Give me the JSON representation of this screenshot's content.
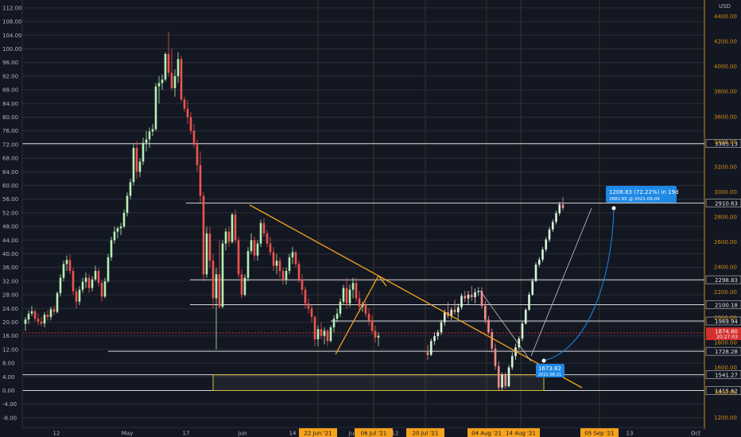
{
  "chart_data": {
    "type": "candlestick",
    "currency": "USD",
    "grid": true,
    "colors": {
      "background": "#131722",
      "up": "#26a69a",
      "up_light": "#b6f0b3",
      "down": "#ef5350",
      "grid": "#2a2e39",
      "level": "#d9d9d9",
      "accent": "#f7a21b",
      "price_badge": "#d32f2f",
      "projection": "#1e88e5"
    },
    "left_axis": {
      "ticks": [
        "112.00",
        "108.00",
        "104.00",
        "100.00",
        "96.00",
        "92.00",
        "88.00",
        "84.00",
        "80.00",
        "76.00",
        "72.00",
        "68.00",
        "64.00",
        "60.00",
        "56.00",
        "52.00",
        "48.00",
        "44.00",
        "40.00",
        "36.00",
        "32.00",
        "28.00",
        "24.00",
        "20.00",
        "16.00",
        "12.00",
        "8.00",
        "4.00",
        "0.00",
        "-4.00",
        "-8.00"
      ]
    },
    "right_axis": {
      "ticks": [
        "4400.00",
        "4200.00",
        "4000.00",
        "3800.00",
        "3600.00",
        "3400.00",
        "3200.00",
        "3000.00",
        "2800.00",
        "2600.00",
        "2400.00",
        "2200.00",
        "2000.00",
        "1800.00",
        "1600.00",
        "1400.00",
        "1200.00"
      ]
    },
    "x_axis": {
      "labels": [
        "12",
        "May",
        "17",
        "Jun",
        "14",
        "22 Jun '21",
        "Jul",
        "06 Jul '21",
        "12",
        "20 Jul '21",
        "04 Aug '21",
        "14 Aug '21",
        "S",
        "05 Sep '21",
        "13",
        "Oct"
      ],
      "highlighted": [
        "22 Jun '21",
        "06 Jul '21",
        "20 Jul '21",
        "04 Aug '21",
        "14 Aug '21",
        "05 Sep '21"
      ]
    },
    "levels": [
      {
        "label": "3385.13",
        "value": 3385.13
      },
      {
        "label": "2910.63",
        "value": 2910.63
      },
      {
        "label": "2298.83",
        "value": 2298.83
      },
      {
        "label": "2100.18",
        "value": 2100.18
      },
      {
        "label": "1969.94",
        "value": 1969.94
      },
      {
        "label": "1728.28",
        "value": 1728.28
      },
      {
        "label": "1541.27",
        "value": 1541.27
      },
      {
        "label": "1415.62",
        "value": 1415.62
      }
    ],
    "current_price": {
      "label": "1874.80",
      "sub": "20:27:03",
      "value": 1874.8
    },
    "projection": {
      "start_label": "1673.82",
      "start_date": "2021-08-21",
      "end_line1": "1208.83 (72.22%) in 19d",
      "end_line2": "2882.65 @ 2021-09-09"
    },
    "candles": [
      {
        "o": 19.5,
        "h": 21.5,
        "l": 17.5,
        "c": 20.8
      },
      {
        "o": 20.8,
        "h": 23.5,
        "l": 19.5,
        "c": 22.5
      },
      {
        "o": 22.5,
        "h": 24.8,
        "l": 21.8,
        "c": 23.2
      },
      {
        "o": 23.2,
        "h": 23.8,
        "l": 20.2,
        "c": 21
      },
      {
        "o": 21,
        "h": 22.5,
        "l": 19,
        "c": 20.2
      },
      {
        "o": 20.2,
        "h": 21.5,
        "l": 18.8,
        "c": 19.6
      },
      {
        "o": 19.6,
        "h": 23,
        "l": 18.5,
        "c": 22.2
      },
      {
        "o": 22.2,
        "h": 23.5,
        "l": 20.5,
        "c": 21.5
      },
      {
        "o": 21.5,
        "h": 24.5,
        "l": 20.5,
        "c": 23.8
      },
      {
        "o": 23.8,
        "h": 24.8,
        "l": 22,
        "c": 23
      },
      {
        "o": 23,
        "h": 29,
        "l": 22.5,
        "c": 28.5
      },
      {
        "o": 28.5,
        "h": 34,
        "l": 27.5,
        "c": 33
      },
      {
        "o": 33,
        "h": 38,
        "l": 32,
        "c": 37
      },
      {
        "o": 37,
        "h": 39.5,
        "l": 35,
        "c": 38.2
      },
      {
        "o": 38.2,
        "h": 39.8,
        "l": 34,
        "c": 35
      },
      {
        "o": 35,
        "h": 36,
        "l": 28,
        "c": 29
      },
      {
        "o": 29,
        "h": 30,
        "l": 24,
        "c": 26
      },
      {
        "o": 26,
        "h": 30.5,
        "l": 25,
        "c": 29.5
      },
      {
        "o": 29.5,
        "h": 33,
        "l": 28.5,
        "c": 31.8
      },
      {
        "o": 31.8,
        "h": 34.5,
        "l": 30,
        "c": 33
      },
      {
        "o": 33,
        "h": 34,
        "l": 28.5,
        "c": 30
      },
      {
        "o": 30,
        "h": 33.5,
        "l": 29,
        "c": 32.5
      },
      {
        "o": 32.5,
        "h": 36.5,
        "l": 32,
        "c": 35
      },
      {
        "o": 35,
        "h": 35.8,
        "l": 30.5,
        "c": 31.5
      },
      {
        "o": 31.5,
        "h": 32.5,
        "l": 26,
        "c": 27.5
      },
      {
        "o": 27.5,
        "h": 33,
        "l": 27,
        "c": 32
      },
      {
        "o": 32,
        "h": 40,
        "l": 31.5,
        "c": 39
      },
      {
        "o": 39,
        "h": 45,
        "l": 38,
        "c": 44
      },
      {
        "o": 44,
        "h": 48,
        "l": 43,
        "c": 46.5
      },
      {
        "o": 46.5,
        "h": 48,
        "l": 44.5,
        "c": 47.5
      },
      {
        "o": 47.5,
        "h": 49,
        "l": 45.5,
        "c": 48
      },
      {
        "o": 48,
        "h": 53,
        "l": 47.5,
        "c": 52
      },
      {
        "o": 52,
        "h": 58,
        "l": 51,
        "c": 57
      },
      {
        "o": 57,
        "h": 62,
        "l": 56,
        "c": 61
      },
      {
        "o": 61,
        "h": 72,
        "l": 60,
        "c": 71
      },
      {
        "o": 71,
        "h": 73,
        "l": 62,
        "c": 64
      },
      {
        "o": 64,
        "h": 68,
        "l": 62.5,
        "c": 67
      },
      {
        "o": 67,
        "h": 74,
        "l": 66,
        "c": 72.5
      },
      {
        "o": 72.5,
        "h": 76,
        "l": 70,
        "c": 73.5
      },
      {
        "o": 73.5,
        "h": 77,
        "l": 71,
        "c": 75.8
      },
      {
        "o": 75.8,
        "h": 78,
        "l": 74.5,
        "c": 76.5
      },
      {
        "o": 76.5,
        "h": 90,
        "l": 76,
        "c": 89
      },
      {
        "o": 89,
        "h": 92,
        "l": 84,
        "c": 90
      },
      {
        "o": 90,
        "h": 92.5,
        "l": 88,
        "c": 91
      },
      {
        "o": 91,
        "h": 99,
        "l": 90.5,
        "c": 98.5
      },
      {
        "o": 98.5,
        "h": 105,
        "l": 92,
        "c": 93
      },
      {
        "o": 93,
        "h": 100,
        "l": 88,
        "c": 88.5
      },
      {
        "o": 88.5,
        "h": 94,
        "l": 86,
        "c": 92
      },
      {
        "o": 92,
        "h": 99,
        "l": 90,
        "c": 97
      },
      {
        "o": 97,
        "h": 98,
        "l": 84.5,
        "c": 85.2
      },
      {
        "o": 85.2,
        "h": 86,
        "l": 81.5,
        "c": 82.5
      },
      {
        "o": 82.5,
        "h": 85,
        "l": 78,
        "c": 80
      },
      {
        "o": 80,
        "h": 81.5,
        "l": 75,
        "c": 76
      },
      {
        "o": 76,
        "h": 78,
        "l": 71,
        "c": 72
      },
      {
        "o": 72,
        "h": 73.5,
        "l": 64,
        "c": 66
      },
      {
        "o": 66,
        "h": 70,
        "l": 55,
        "c": 57
      },
      {
        "o": 57,
        "h": 58,
        "l": 32,
        "c": 34
      },
      {
        "o": 34,
        "h": 48,
        "l": 33,
        "c": 46
      },
      {
        "o": 46,
        "h": 48,
        "l": 36,
        "c": 38
      },
      {
        "o": 38,
        "h": 40,
        "l": 24,
        "c": 27
      },
      {
        "o": 27,
        "h": 36,
        "l": 12,
        "c": 34
      },
      {
        "o": 34,
        "h": 44,
        "l": 24,
        "c": 24.5
      },
      {
        "o": 24.5,
        "h": 44,
        "l": 24,
        "c": 43
      },
      {
        "o": 43,
        "h": 47.5,
        "l": 41,
        "c": 46.5
      },
      {
        "o": 46.5,
        "h": 48,
        "l": 42,
        "c": 43.5
      },
      {
        "o": 43.5,
        "h": 52,
        "l": 43,
        "c": 51.5
      },
      {
        "o": 51.5,
        "h": 53,
        "l": 43,
        "c": 44
      },
      {
        "o": 44,
        "h": 45,
        "l": 33,
        "c": 34
      },
      {
        "o": 34,
        "h": 35.5,
        "l": 27,
        "c": 28
      },
      {
        "o": 28,
        "h": 34,
        "l": 27.5,
        "c": 33
      },
      {
        "o": 33,
        "h": 42,
        "l": 32,
        "c": 40.8
      },
      {
        "o": 40.8,
        "h": 46,
        "l": 40,
        "c": 44
      },
      {
        "o": 44,
        "h": 45,
        "l": 38,
        "c": 39.5
      },
      {
        "o": 39.5,
        "h": 44,
        "l": 38,
        "c": 43
      },
      {
        "o": 43,
        "h": 50,
        "l": 42,
        "c": 49
      },
      {
        "o": 49,
        "h": 50.5,
        "l": 45,
        "c": 46
      },
      {
        "o": 46,
        "h": 47,
        "l": 42,
        "c": 43
      },
      {
        "o": 43,
        "h": 45,
        "l": 39.5,
        "c": 40.5
      },
      {
        "o": 40.5,
        "h": 42,
        "l": 35,
        "c": 36.5
      },
      {
        "o": 36.5,
        "h": 40,
        "l": 34,
        "c": 38
      },
      {
        "o": 38,
        "h": 39,
        "l": 33,
        "c": 35
      },
      {
        "o": 35,
        "h": 36,
        "l": 31,
        "c": 32.5
      },
      {
        "o": 32.5,
        "h": 36,
        "l": 31,
        "c": 35
      },
      {
        "o": 35,
        "h": 40,
        "l": 34,
        "c": 39
      },
      {
        "o": 39,
        "h": 42,
        "l": 37,
        "c": 40.5
      },
      {
        "o": 40.5,
        "h": 41,
        "l": 36,
        "c": 37
      },
      {
        "o": 37,
        "h": 38,
        "l": 31.5,
        "c": 32.5
      },
      {
        "o": 32.5,
        "h": 34,
        "l": 28,
        "c": 29.5
      },
      {
        "o": 29.5,
        "h": 30.5,
        "l": 24,
        "c": 25.5
      },
      {
        "o": 25.5,
        "h": 27,
        "l": 22.5,
        "c": 24
      },
      {
        "o": 24,
        "h": 25,
        "l": 20,
        "c": 21.5
      },
      {
        "o": 21.5,
        "h": 22,
        "l": 13,
        "c": 15
      },
      {
        "o": 15,
        "h": 19,
        "l": 13,
        "c": 18
      },
      {
        "o": 18,
        "h": 20,
        "l": 15,
        "c": 16
      },
      {
        "o": 16,
        "h": 18.5,
        "l": 13.5,
        "c": 17.5
      },
      {
        "o": 17.5,
        "h": 18,
        "l": 13,
        "c": 14.5
      },
      {
        "o": 14.5,
        "h": 19,
        "l": 14,
        "c": 18.5
      },
      {
        "o": 18.5,
        "h": 22,
        "l": 17,
        "c": 21
      },
      {
        "o": 21,
        "h": 24,
        "l": 20,
        "c": 22.5
      },
      {
        "o": 22.5,
        "h": 27,
        "l": 21.5,
        "c": 26
      },
      {
        "o": 26,
        "h": 31,
        "l": 25,
        "c": 30
      },
      {
        "o": 30,
        "h": 33,
        "l": 24,
        "c": 25.5
      },
      {
        "o": 25.5,
        "h": 31,
        "l": 24.5,
        "c": 29.5
      },
      {
        "o": 29.5,
        "h": 33,
        "l": 27,
        "c": 31.5
      },
      {
        "o": 31.5,
        "h": 33,
        "l": 26,
        "c": 27
      },
      {
        "o": 27,
        "h": 29,
        "l": 23,
        "c": 24.5
      },
      {
        "o": 24.5,
        "h": 26,
        "l": 23,
        "c": 25
      },
      {
        "o": 25,
        "h": 26,
        "l": 21.5,
        "c": 22.5
      },
      {
        "o": 22.5,
        "h": 24,
        "l": 19,
        "c": 20.5
      },
      {
        "o": 20.5,
        "h": 22,
        "l": 16.5,
        "c": 17.5
      },
      {
        "o": 17.5,
        "h": 19,
        "l": 14,
        "c": 15.5
      },
      {
        "o": 15.5,
        "h": 17,
        "l": 13,
        "c": 16
      }
    ],
    "bright_candles": [
      {
        "o": 1720,
        "h": 1780,
        "l": 1660,
        "c": 1700
      },
      {
        "o": 1700,
        "h": 1830,
        "l": 1690,
        "c": 1810
      },
      {
        "o": 1810,
        "h": 1880,
        "l": 1780,
        "c": 1850
      },
      {
        "o": 1850,
        "h": 1900,
        "l": 1820,
        "c": 1880
      },
      {
        "o": 1880,
        "h": 1980,
        "l": 1860,
        "c": 1960
      },
      {
        "o": 1960,
        "h": 2060,
        "l": 1930,
        "c": 2040
      },
      {
        "o": 2040,
        "h": 2120,
        "l": 1990,
        "c": 2010
      },
      {
        "o": 2010,
        "h": 2080,
        "l": 1980,
        "c": 2060
      },
      {
        "o": 2060,
        "h": 2140,
        "l": 2020,
        "c": 2040
      },
      {
        "o": 2040,
        "h": 2110,
        "l": 1990,
        "c": 2080
      },
      {
        "o": 2080,
        "h": 2190,
        "l": 2060,
        "c": 2170
      },
      {
        "o": 2170,
        "h": 2210,
        "l": 2120,
        "c": 2150
      },
      {
        "o": 2150,
        "h": 2210,
        "l": 2100,
        "c": 2180
      },
      {
        "o": 2180,
        "h": 2250,
        "l": 2130,
        "c": 2160
      },
      {
        "o": 2160,
        "h": 2230,
        "l": 2110,
        "c": 2200
      },
      {
        "o": 2200,
        "h": 2240,
        "l": 2170,
        "c": 2210
      },
      {
        "o": 2210,
        "h": 2240,
        "l": 2070,
        "c": 2090
      },
      {
        "o": 2090,
        "h": 2130,
        "l": 1950,
        "c": 1980
      },
      {
        "o": 1980,
        "h": 2010,
        "l": 1860,
        "c": 1880
      },
      {
        "o": 1880,
        "h": 1910,
        "l": 1720,
        "c": 1750
      },
      {
        "o": 1750,
        "h": 1790,
        "l": 1580,
        "c": 1610
      },
      {
        "o": 1610,
        "h": 1650,
        "l": 1410,
        "c": 1440
      },
      {
        "o": 1440,
        "h": 1560,
        "l": 1420,
        "c": 1540
      },
      {
        "o": 1540,
        "h": 1560,
        "l": 1430,
        "c": 1450
      },
      {
        "o": 1450,
        "h": 1620,
        "l": 1440,
        "c": 1600
      },
      {
        "o": 1600,
        "h": 1720,
        "l": 1580,
        "c": 1690
      },
      {
        "o": 1690,
        "h": 1790,
        "l": 1660,
        "c": 1760
      },
      {
        "o": 1760,
        "h": 1850,
        "l": 1740,
        "c": 1830
      },
      {
        "o": 1830,
        "h": 1970,
        "l": 1810,
        "c": 1950
      },
      {
        "o": 1950,
        "h": 2070,
        "l": 1940,
        "c": 2060
      },
      {
        "o": 2060,
        "h": 2200,
        "l": 2050,
        "c": 2180
      },
      {
        "o": 2180,
        "h": 2310,
        "l": 2170,
        "c": 2290
      },
      {
        "o": 2290,
        "h": 2440,
        "l": 2280,
        "c": 2420
      },
      {
        "o": 2420,
        "h": 2480,
        "l": 2400,
        "c": 2460
      },
      {
        "o": 2460,
        "h": 2560,
        "l": 2440,
        "c": 2540
      },
      {
        "o": 2540,
        "h": 2640,
        "l": 2520,
        "c": 2620
      },
      {
        "o": 2620,
        "h": 2720,
        "l": 2600,
        "c": 2700
      },
      {
        "o": 2700,
        "h": 2780,
        "l": 2680,
        "c": 2760
      },
      {
        "o": 2760,
        "h": 2850,
        "l": 2740,
        "c": 2830
      },
      {
        "o": 2830,
        "h": 2920,
        "l": 2810,
        "c": 2900
      },
      {
        "o": 2900,
        "h": 2960,
        "l": 2850,
        "c": 2870
      }
    ]
  }
}
